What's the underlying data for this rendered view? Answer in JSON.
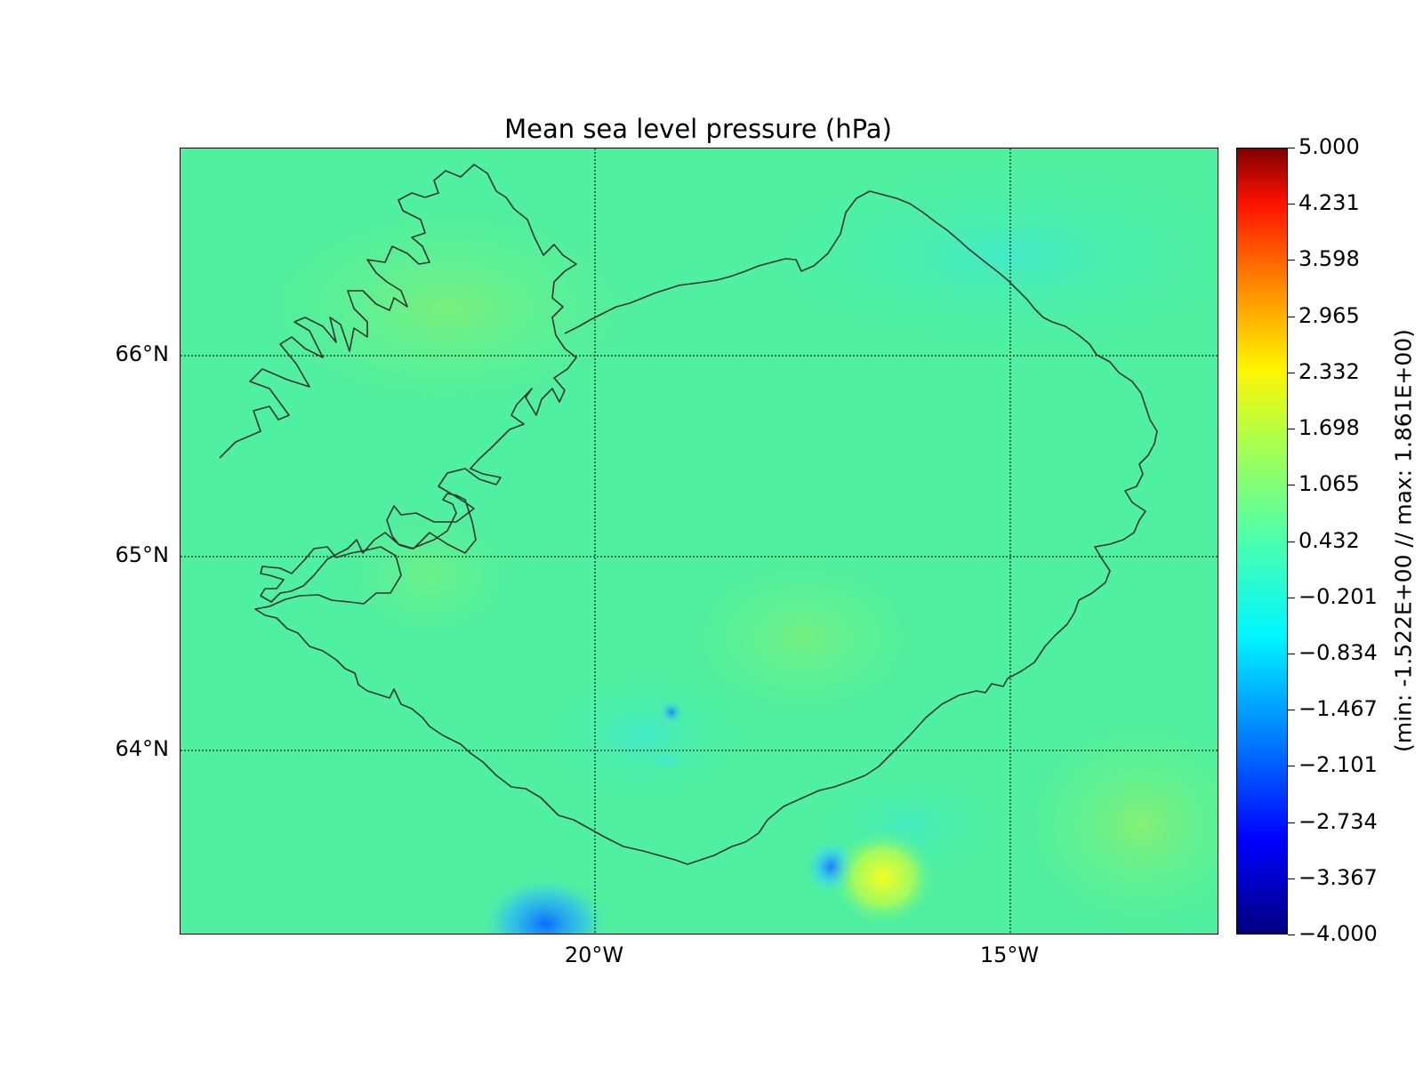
{
  "title": "Mean sea level pressure (hPa)",
  "map": {
    "lat_labels": [
      "66°N",
      "65°N",
      "64°N"
    ],
    "lon_labels": [
      "20°W",
      "15°W"
    ],
    "field_color": "#4ff0a0",
    "coastline_color": "#333333"
  },
  "colorbar": {
    "ticks": [
      "5.000",
      "4.231",
      "3.598",
      "2.965",
      "2.332",
      "1.698",
      "1.065",
      "0.432",
      "−0.201",
      "−0.834",
      "−1.467",
      "−2.101",
      "−2.734",
      "−3.367",
      "−4.000"
    ],
    "label": "(min: -1.522E+00 // max:  1.861E+00)",
    "range": [
      -4.0,
      5.0
    ]
  }
}
